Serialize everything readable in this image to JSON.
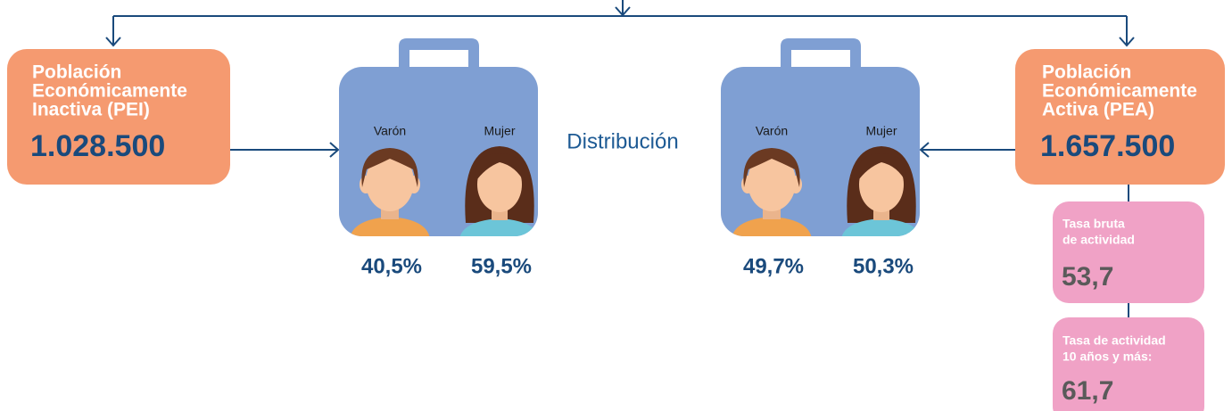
{
  "center_label": "Distribución",
  "inactive": {
    "title_lines": [
      "Población",
      "Económicamente",
      "Inactiva (PEI)"
    ],
    "total": "1.028.500",
    "distribution": [
      {
        "label": "Varón",
        "share": "40,5%"
      },
      {
        "label": "Mujer",
        "share": "59,5%"
      }
    ]
  },
  "active": {
    "title_lines": [
      "Población",
      "Económicamente",
      "Activa (PEA)"
    ],
    "total": "1.657.500",
    "distribution": [
      {
        "label": "Varón",
        "share": "49,7%"
      },
      {
        "label": "Mujer",
        "share": "50,3%"
      }
    ]
  },
  "rates": [
    {
      "label_lines": [
        "Tasa bruta",
        "de actividad"
      ],
      "value": "53,7"
    },
    {
      "label_lines": [
        "Tasa de actividad",
        "10 años y más:"
      ],
      "value": "61,7"
    }
  ]
}
